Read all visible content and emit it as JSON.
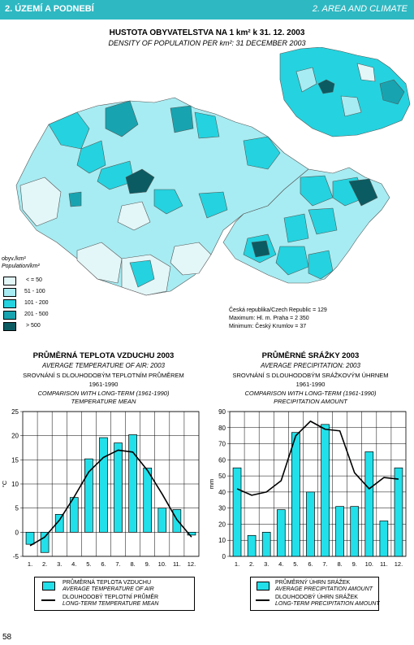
{
  "header": {
    "left": "2. ÚZEMÍ A PODNEBÍ",
    "right": "2. AREA AND CLIMATE"
  },
  "map": {
    "title_cz": "HUSTOTA OBYVATELSTVA NA 1 km² k 31. 12. 2003",
    "title_en": "DENSITY OF POPULATION PER km²: 31 DECEMBER 2003",
    "legend_title_cz": "obyv./km²",
    "legend_title_en": "Population/km²",
    "legend": [
      {
        "label": "< = 50",
        "color": "#e3f6f8"
      },
      {
        "label": "51 - 100",
        "color": "#a7ecf2"
      },
      {
        "label": "101 - 200",
        "color": "#24d3df"
      },
      {
        "label": "201 - 500",
        "color": "#17a4b0"
      },
      {
        "label": "> 500",
        "color": "#0b5b62"
      }
    ],
    "stats": [
      "Česká republika/Czech Republic = 129",
      "Maximum: Hl. m. Praha = 2 350",
      "Minimum: Český Krumlov = 37"
    ]
  },
  "temp": {
    "title": "PRŮMĚRNÁ TEPLOTA VZDUCHU 2003",
    "subtitle": "AVERAGE TEMPERATURE OF AIR: 2003",
    "line3": "SROVNÁNÍ S DLOUHODOBÝM TEPLOTNÍM PRŮMĚREM",
    "line4": "1961-1990",
    "line5": "COMPARISON WITH LONG-TERM (1961-1990)",
    "line6": "TEMPERATURE MEAN",
    "legend_bar_cz": "PRŮMĚRNÁ TEPLOTA VZDUCHU",
    "legend_bar_en": "AVERAGE TEMPERATURE OF AIR",
    "legend_line_cz": "DLOUHODOBÝ TEPLOTNÍ PRŮMĚR",
    "legend_line_en": "LONG-TERM TEMPERATURE MEAN"
  },
  "precip": {
    "title": "PRŮMĚRNÉ SRÁŽKY 2003",
    "subtitle": "AVERAGE PRECIPITATION: 2003",
    "line3": "SROVNÁNÍ S DLOUHODOBÝM SRÁŽKOVÝM ÚHRNEM",
    "line4": "1961-1990",
    "line5": "COMPARISON WITH LONG-TERM (1961-1990)",
    "line6": "PRECIPITATION AMOUNT",
    "legend_bar_cz": "PRŮMĚRNÝ ÚHRN SRÁŽEK",
    "legend_bar_en": "AVERAGE PRECIPITATION AMOUNT",
    "legend_line_cz": "DLOUHODOBÝ ÚHRN SRÁŽEK",
    "legend_line_en": "LONG-TERM PRECIPITATION AMOUNT"
  },
  "page_number": "58",
  "colors": {
    "accent": "#2eb8c2",
    "bar": "#22e0ea"
  },
  "chart_data": [
    {
      "type": "bar",
      "title": "PRŮMĚRNÁ TEPLOTA VZDUCHU 2003",
      "ylabel": "°C",
      "categories": [
        "1.",
        "2.",
        "3.",
        "4.",
        "5.",
        "6.",
        "7.",
        "8.",
        "9.",
        "10.",
        "11.",
        "12."
      ],
      "ylim": [
        -5,
        25
      ],
      "yticks": [
        "-5",
        "0",
        "5",
        "10",
        "15",
        "20",
        "25"
      ],
      "series": [
        {
          "name": "PRŮMĚRNÁ TEPLOTA VZDUCHU",
          "kind": "bar",
          "values": [
            -2.5,
            -4.2,
            3.7,
            7.2,
            15.2,
            19.6,
            18.5,
            20.2,
            13.3,
            5.0,
            4.7,
            -0.6
          ]
        },
        {
          "name": "DLOUHODOBÝ TEPLOTNÍ PRŮMĚR",
          "kind": "line",
          "values": [
            -2.8,
            -1.0,
            2.5,
            7.3,
            12.5,
            15.5,
            17.0,
            16.6,
            12.8,
            7.9,
            2.6,
            -1.0
          ]
        }
      ]
    },
    {
      "type": "bar",
      "title": "PRŮMĚRNÉ SRÁŽKY 2003",
      "ylabel": "mm",
      "categories": [
        "1.",
        "2.",
        "3.",
        "4.",
        "5.",
        "6.",
        "7.",
        "8.",
        "9.",
        "10.",
        "11.",
        "12."
      ],
      "ylim": [
        0,
        90
      ],
      "yticks": [
        "0",
        "10",
        "20",
        "30",
        "40",
        "50",
        "60",
        "70",
        "80",
        "90"
      ],
      "series": [
        {
          "name": "PRŮMĚRNÝ ÚHRN SRÁŽEK",
          "kind": "bar",
          "values": [
            55,
            13,
            15,
            29,
            77,
            40,
            82,
            31,
            31,
            65,
            22,
            55
          ]
        },
        {
          "name": "DLOUHODOBÝ ÚHRN SRÁŽEK",
          "kind": "line",
          "values": [
            42,
            38,
            40,
            47,
            75,
            84,
            79,
            78,
            52,
            42,
            49,
            48
          ]
        }
      ]
    }
  ]
}
